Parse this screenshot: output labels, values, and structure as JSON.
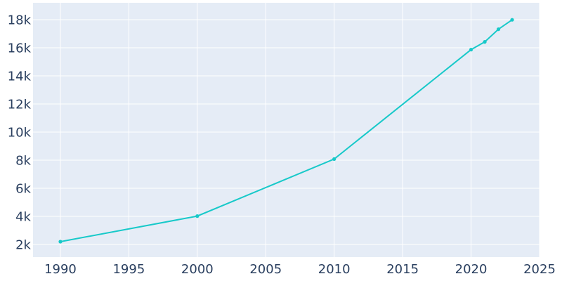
{
  "chart_data": {
    "type": "line",
    "title": "",
    "xlabel": "",
    "ylabel": "",
    "xlim": [
      1988,
      2025
    ],
    "ylim": [
      1100,
      19200
    ],
    "x_ticks": [
      1990,
      1995,
      2000,
      2005,
      2010,
      2015,
      2020,
      2025
    ],
    "x_tick_labels": [
      "1990",
      "1995",
      "2000",
      "2005",
      "2010",
      "2015",
      "2020",
      "2025"
    ],
    "y_ticks": [
      2000,
      4000,
      6000,
      8000,
      10000,
      12000,
      14000,
      16000,
      18000
    ],
    "y_tick_labels": [
      "2k",
      "4k",
      "6k",
      "8k",
      "10k",
      "12k",
      "14k",
      "16k",
      "18k"
    ],
    "grid": true,
    "legend": "none",
    "series": [
      {
        "color": "#17c9c9",
        "x": [
          1990,
          2000,
          2010,
          2020,
          2021,
          2022,
          2023
        ],
        "y": [
          2200,
          4020,
          8080,
          15870,
          16420,
          17320,
          17990
        ]
      }
    ]
  },
  "colors": {
    "plot_background": "#e5ecf6",
    "grid": "#ffffff",
    "tick_text": "#2a3f5f"
  }
}
